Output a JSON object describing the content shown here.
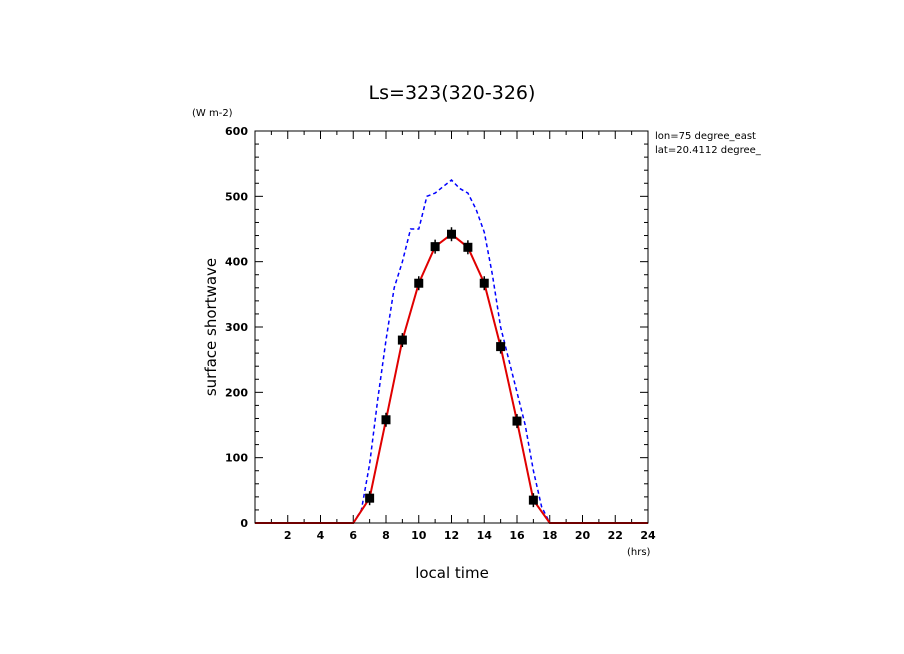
{
  "chart_data": {
    "type": "line",
    "title": "Ls=323(320-326)",
    "xlabel": "local time",
    "ylabel": "surface shortwave",
    "xunit": "(hrs)",
    "yunit": "(W m-2)",
    "annotations": [
      "lon=75 degree_east",
      "lat=20.4112 degree_"
    ],
    "xlim": [
      0,
      24
    ],
    "ylim": [
      0,
      600
    ],
    "xticks": [
      2,
      4,
      6,
      8,
      10,
      12,
      14,
      16,
      18,
      20,
      22,
      24
    ],
    "yticks": [
      0,
      100,
      200,
      300,
      400,
      500,
      600
    ],
    "grid": false,
    "series": [
      {
        "style": "dashed",
        "color": "#0000ff",
        "x": [
          0,
          1,
          2,
          3,
          4,
          5,
          6,
          6.5,
          7,
          7.5,
          8,
          8.5,
          9,
          9.5,
          10,
          10.5,
          11,
          11.5,
          12,
          12.5,
          13,
          13.5,
          14,
          14.5,
          15,
          15.5,
          16,
          16.5,
          17,
          17.5,
          18,
          19,
          20,
          21,
          22,
          23,
          24
        ],
        "values": [
          0,
          0,
          0,
          0,
          0,
          0,
          0,
          20,
          90,
          190,
          280,
          360,
          400,
          450,
          450,
          500,
          505,
          515,
          525,
          512,
          505,
          480,
          445,
          380,
          300,
          250,
          200,
          150,
          80,
          25,
          0,
          0,
          0,
          0,
          0,
          0,
          0
        ]
      },
      {
        "style": "solid",
        "color": "#e00000",
        "x": [
          0,
          1,
          2,
          3,
          4,
          5,
          6,
          7,
          8,
          9,
          10,
          11,
          12,
          13,
          14,
          15,
          16,
          17,
          18,
          19,
          20,
          21,
          22,
          23,
          24
        ],
        "values": [
          0,
          0,
          0,
          0,
          0,
          0,
          0,
          38,
          158,
          280,
          367,
          423,
          442,
          422,
          367,
          270,
          156,
          35,
          0,
          0,
          0,
          0,
          0,
          0,
          0
        ]
      }
    ],
    "observations": {
      "color": "#000000",
      "x": [
        7,
        8,
        9,
        10,
        11,
        12,
        13,
        14,
        15,
        16,
        17
      ],
      "values": [
        38,
        158,
        280,
        367,
        423,
        442,
        422,
        367,
        270,
        156,
        35
      ]
    }
  }
}
